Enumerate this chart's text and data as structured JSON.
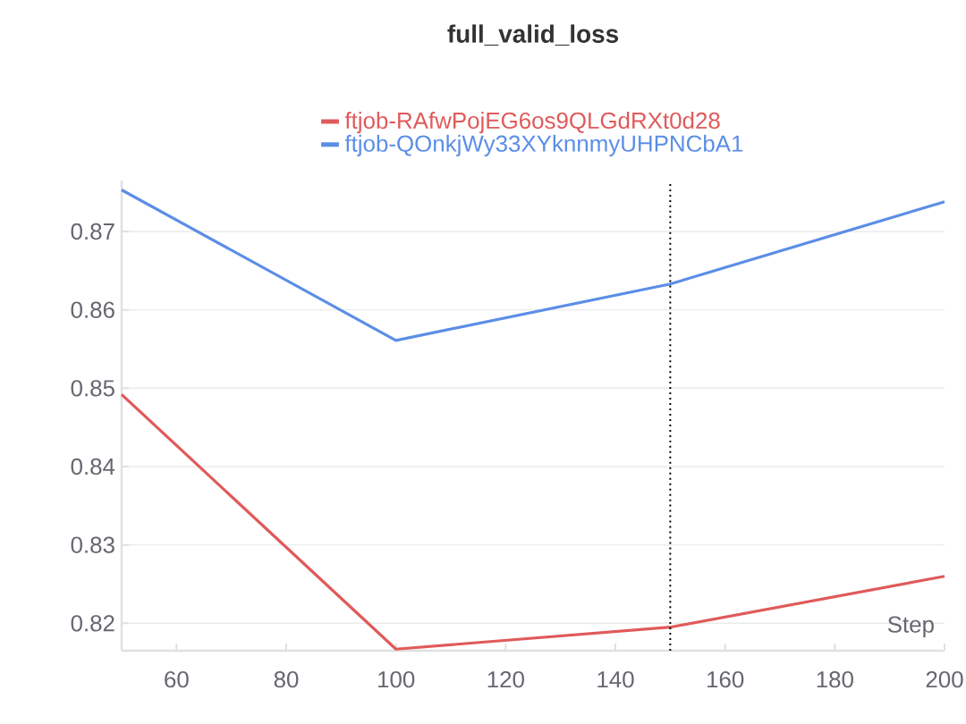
{
  "chart_data": {
    "type": "line",
    "title": "full_valid_loss",
    "xlabel": "Step",
    "x": [
      50,
      100,
      150,
      200
    ],
    "series": [
      {
        "name": "ftjob-RAfwPojEG6os9QLGdRXt0d28",
        "color": "#e05a5a",
        "values": [
          0.8492,
          0.8167,
          0.8195,
          0.826
        ]
      },
      {
        "name": "ftjob-QOnkjWy33XYknnmyUHPNCbA1",
        "color": "#5b8ee6",
        "values": [
          0.8753,
          0.8561,
          0.8633,
          0.8738
        ]
      }
    ],
    "xlim": [
      50,
      200
    ],
    "xticks": [
      60,
      80,
      100,
      120,
      140,
      160,
      180,
      200
    ],
    "ylim": [
      0.8165,
      0.8765
    ],
    "yticks": [
      0.82,
      0.83,
      0.84,
      0.85,
      0.86,
      0.87
    ],
    "ref_lines": [
      {
        "axis": "x",
        "value": 150,
        "line_style": "dotted",
        "color": "#000000"
      }
    ],
    "grid": "y",
    "legend": "top",
    "marker": "none",
    "line_style": "solid"
  }
}
